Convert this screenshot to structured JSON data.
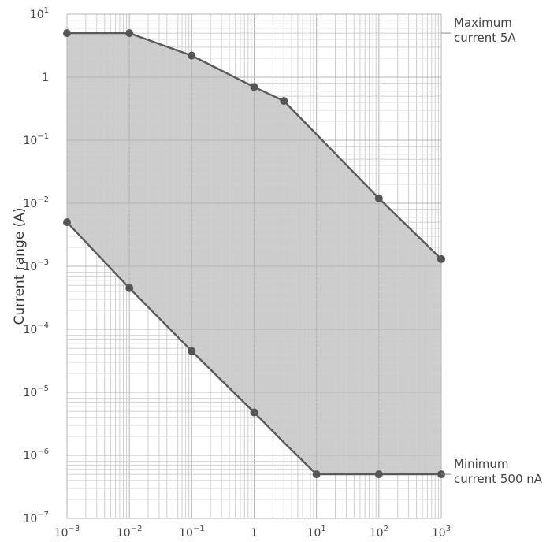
{
  "chart_data": {
    "type": "line",
    "title": "",
    "xlabel": "",
    "ylabel": "Current range (A)",
    "x_scale": "log",
    "y_scale": "log",
    "xlim": [
      0.001,
      1000
    ],
    "ylim": [
      1e-07,
      10
    ],
    "grid": true,
    "x_ticks": [
      {
        "base": "10",
        "exp": "−3"
      },
      {
        "base": "10",
        "exp": "−2"
      },
      {
        "base": "10",
        "exp": "−1"
      },
      {
        "base": "1",
        "exp": ""
      },
      {
        "base": "10",
        "exp": "1"
      },
      {
        "base": "10",
        "exp": "2"
      },
      {
        "base": "10",
        "exp": "3"
      }
    ],
    "y_ticks": [
      {
        "base": "10",
        "exp": "−7"
      },
      {
        "base": "10",
        "exp": "−6"
      },
      {
        "base": "10",
        "exp": "−5"
      },
      {
        "base": "10",
        "exp": "−4"
      },
      {
        "base": "10",
        "exp": "−3"
      },
      {
        "base": "10",
        "exp": "−2"
      },
      {
        "base": "10",
        "exp": "−1"
      },
      {
        "base": "1",
        "exp": ""
      },
      {
        "base": "10",
        "exp": "1"
      }
    ],
    "series": [
      {
        "role": "upper",
        "points": [
          [
            0.001,
            5
          ],
          [
            0.01,
            5
          ],
          [
            0.1,
            2.2
          ],
          [
            1,
            0.7
          ],
          [
            3,
            0.42
          ],
          [
            100,
            0.012
          ],
          [
            1000,
            0.0013
          ]
        ],
        "markers": [
          [
            0.001,
            5
          ],
          [
            0.01,
            5
          ],
          [
            0.1,
            2.2
          ],
          [
            1,
            0.7
          ],
          [
            3,
            0.42
          ],
          [
            100,
            0.012
          ],
          [
            1000,
            0.0013
          ]
        ]
      },
      {
        "role": "lower",
        "points": [
          [
            0.001,
            0.005
          ],
          [
            0.01,
            0.00045
          ],
          [
            0.1,
            4.5e-05
          ],
          [
            1,
            4.8e-06
          ],
          [
            3,
            1.6e-06
          ],
          [
            10,
            5e-07
          ],
          [
            100,
            5e-07
          ],
          [
            1000,
            5e-07
          ]
        ],
        "markers": [
          [
            0.001,
            0.005
          ],
          [
            0.01,
            0.00045
          ],
          [
            0.1,
            4.5e-05
          ],
          [
            1,
            4.8e-06
          ],
          [
            10,
            5e-07
          ],
          [
            100,
            5e-07
          ],
          [
            1000,
            5e-07
          ]
        ]
      }
    ],
    "annotations": [
      {
        "lines": [
          "Maximum",
          "current 5A"
        ],
        "y": 5
      },
      {
        "lines": [
          "Minimum",
          "current 500 nA"
        ],
        "y": 5e-07
      }
    ],
    "colors": {
      "line": "#5a5a5a",
      "marker": "#555555",
      "fill": "#cccccc",
      "major_grid": "#b4b4b4",
      "minor_grid": "#cfcfcf"
    }
  }
}
